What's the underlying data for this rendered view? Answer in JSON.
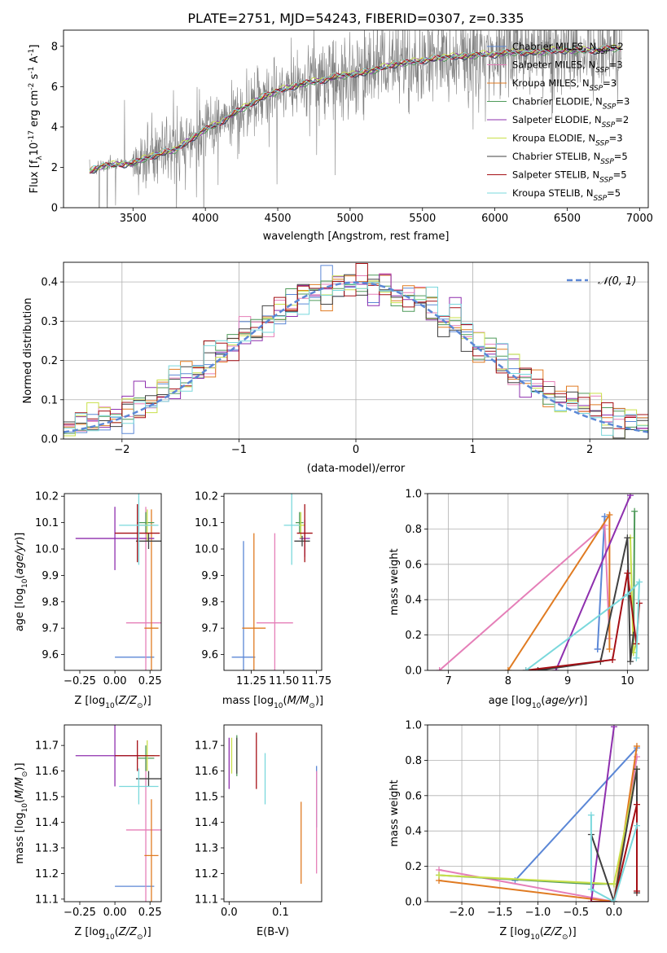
{
  "colors": {
    "chabrier_miles": "#5b87d6",
    "salpeter_miles": "#e57fb8",
    "kroupa_miles": "#e07b22",
    "chabrier_elodie": "#4f9a5a",
    "salpeter_elodie": "#8e2fae",
    "kroupa_elodie": "#c9e04a",
    "chabrier_stelib": "#404040",
    "salpeter_stelib": "#a50f15",
    "kroupa_stelib": "#7ad8dc",
    "data": "#808080",
    "normal": "#5b87d6"
  },
  "chart_data": [
    {
      "id": "spectrum",
      "type": "line",
      "title": "PLATE=2751, MJD=54243, FIBERID=0307, z=0.335",
      "xlabel": "wavelength [Angstrom, rest frame]",
      "ylabel": "Flux [f",
      "ylabel_sub": "λ",
      "ylabel_rest": "10",
      "ylabel_exp": "-17",
      "ylabel_unit": " erg cm",
      "ylabel_exp2": "-2",
      "ylabel_unit2": " s",
      "ylabel_exp3": "-1",
      "ylabel_unit3": " A",
      "ylabel_exp4": "-1",
      "ylabel_end": "]",
      "xlim": [
        3020,
        7060
      ],
      "ylim": [
        0,
        8.8
      ],
      "xticks": [
        "3500",
        "4000",
        "4500",
        "5000",
        "5500",
        "6000",
        "6500",
        "7000"
      ],
      "xtick_values": [
        3500,
        4000,
        4500,
        5000,
        5500,
        6000,
        6500,
        7000
      ],
      "yticks": [
        "0",
        "2",
        "4",
        "6",
        "8"
      ],
      "ytick_values": [
        0,
        2,
        4,
        6,
        8
      ],
      "grid": false,
      "legend_position": "top-right",
      "continuum": {
        "x": [
          3200,
          3300,
          3400,
          3500,
          3600,
          3700,
          3800,
          3900,
          4000,
          4100,
          4200,
          4300,
          4400,
          4500,
          4600,
          4700,
          4800,
          4900,
          5000,
          5100,
          5200,
          5300,
          5400,
          5500,
          5600,
          5700,
          5800,
          5900,
          6000,
          6100,
          6200,
          6300,
          6400,
          6500,
          6600,
          6700,
          6800,
          6880
        ],
        "y": [
          1.8,
          2.1,
          2.15,
          2.2,
          2.5,
          2.7,
          2.9,
          3.4,
          3.9,
          4.2,
          4.7,
          5.1,
          5.5,
          5.8,
          6.0,
          6.2,
          6.3,
          6.5,
          6.6,
          6.7,
          6.9,
          7.1,
          7.2,
          7.3,
          7.4,
          7.5,
          7.5,
          7.6,
          7.6,
          7.7,
          7.7,
          7.7,
          7.8,
          7.8,
          7.8,
          7.8,
          7.9,
          7.9
        ]
      },
      "series": [
        {
          "name": "Chabrier MILES, N",
          "nssp": "=2"
        },
        {
          "name": "Salpeter MILES, N",
          "nssp": "=3"
        },
        {
          "name": "Kroupa MILES, N",
          "nssp": "=3"
        },
        {
          "name": "Chabrier ELODIE, N",
          "nssp": "=3"
        },
        {
          "name": "Salpeter ELODIE, N",
          "nssp": "=2"
        },
        {
          "name": "Kroupa ELODIE, N",
          "nssp": "=3"
        },
        {
          "name": "Chabrier STELIB, N",
          "nssp": "=5"
        },
        {
          "name": "Salpeter STELIB, N",
          "nssp": "=5"
        },
        {
          "name": "Kroupa STELIB, N",
          "nssp": "=5"
        }
      ],
      "legend_sub": "SSP"
    },
    {
      "id": "residuals",
      "type": "line",
      "xlabel": "(data-model)/error",
      "ylabel": "Normed distribution",
      "xlim": [
        -2.5,
        2.5
      ],
      "ylim": [
        0,
        0.45
      ],
      "xticks": [
        "−2",
        "−1",
        "0",
        "1",
        "2"
      ],
      "xtick_values": [
        -2,
        -1,
        0,
        1,
        2
      ],
      "yticks": [
        "0.0",
        "0.1",
        "0.2",
        "0.3",
        "0.4"
      ],
      "ytick_values": [
        0,
        0.1,
        0.2,
        0.3,
        0.4
      ],
      "grid": true,
      "legend_position": "top-right",
      "legend_label": "𝒩(0, 1)"
    },
    {
      "id": "z-age",
      "type": "scatter",
      "xlabel": "Z [log",
      "ylabel": "age  [log",
      "xlim": [
        -0.36,
        0.33
      ],
      "ylim": [
        9.54,
        10.21
      ],
      "xticks": [
        "−0.25",
        "0.00",
        "0.25"
      ],
      "xtick_values": [
        -0.25,
        0,
        0.25
      ],
      "yticks": [
        "9.6",
        "9.7",
        "9.8",
        "9.9",
        "10.0",
        "10.1",
        "10.2"
      ],
      "ytick_values": [
        9.6,
        9.7,
        9.8,
        9.9,
        10.0,
        10.1,
        10.2
      ],
      "grid": false,
      "points": [
        {
          "series": "chabrier_miles",
          "x": 0.14,
          "y": 9.59,
          "xerr": 0.14,
          "yerr": 0
        },
        {
          "series": "salpeter_miles",
          "x": 0.22,
          "y": 9.72,
          "xerr": 0.14,
          "yerr": 0.44
        },
        {
          "series": "kroupa_miles",
          "x": 0.26,
          "y": 9.7,
          "xerr": 0.05,
          "yerr": 0.45
        },
        {
          "series": "chabrier_elodie",
          "x": 0.22,
          "y": 10.1,
          "xerr": 0.06,
          "yerr": 0.04
        },
        {
          "series": "salpeter_elodie",
          "x": 0.0,
          "y": 10.04,
          "xerr": 0.28,
          "yerr": 0.12
        },
        {
          "series": "kroupa_elodie",
          "x": 0.23,
          "y": 10.09,
          "xerr": 0.05,
          "yerr": 0.06
        },
        {
          "series": "chabrier_stelib",
          "x": 0.24,
          "y": 10.03,
          "xerr": 0.09,
          "yerr": 0.03
        },
        {
          "series": "salpeter_stelib",
          "x": 0.16,
          "y": 10.06,
          "xerr": 0.16,
          "yerr": 0.11
        },
        {
          "series": "kroupa_stelib",
          "x": 0.17,
          "y": 10.09,
          "xerr": 0.14,
          "yerr": 0.15
        }
      ]
    },
    {
      "id": "mass-age",
      "type": "scatter",
      "xlabel": "mass [log",
      "xlim": [
        11.04,
        11.79
      ],
      "ylim": [
        9.54,
        10.21
      ],
      "xticks": [
        "11.25",
        "11.50",
        "11.75"
      ],
      "xtick_values": [
        11.25,
        11.5,
        11.75
      ],
      "yticks": [
        "9.6",
        "9.7",
        "9.8",
        "9.9",
        "10.0",
        "10.1",
        "10.2"
      ],
      "ytick_values": [
        9.6,
        9.7,
        9.8,
        9.9,
        10.0,
        10.1,
        10.2
      ],
      "grid": false,
      "points": [
        {
          "series": "chabrier_miles",
          "x": 11.19,
          "y": 9.59,
          "xerr": 0.09,
          "yerr": 0.44
        },
        {
          "series": "salpeter_miles",
          "x": 11.43,
          "y": 9.72,
          "xerr": 0.14,
          "yerr": 0.34
        },
        {
          "series": "kroupa_miles",
          "x": 11.27,
          "y": 9.7,
          "xerr": 0.09,
          "yerr": 0.36
        },
        {
          "series": "chabrier_elodie",
          "x": 11.62,
          "y": 10.1,
          "xerr": 0.03,
          "yerr": 0.04
        },
        {
          "series": "salpeter_elodie",
          "x": 11.66,
          "y": 10.04,
          "xerr": 0.04,
          "yerr": 0.07
        },
        {
          "series": "kroupa_elodie",
          "x": 11.63,
          "y": 10.09,
          "xerr": 0.03,
          "yerr": 0.05
        },
        {
          "series": "chabrier_stelib",
          "x": 11.64,
          "y": 10.03,
          "xerr": 0.06,
          "yerr": 0.02
        },
        {
          "series": "salpeter_stelib",
          "x": 11.66,
          "y": 10.06,
          "xerr": 0.06,
          "yerr": 0.11
        },
        {
          "series": "kroupa_stelib",
          "x": 11.56,
          "y": 10.09,
          "xerr": 0.06,
          "yerr": 0.15
        }
      ]
    },
    {
      "id": "age-weight",
      "type": "line",
      "xlabel": "age  [log",
      "ylabel": "mass weight",
      "xlim": [
        6.65,
        10.35
      ],
      "ylim": [
        0,
        1.0
      ],
      "xticks": [
        "7",
        "8",
        "9",
        "10"
      ],
      "xtick_values": [
        7,
        8,
        9,
        10
      ],
      "yticks": [
        "0.0",
        "0.2",
        "0.4",
        "0.6",
        "0.8",
        "1.0"
      ],
      "ytick_values": [
        0,
        0.2,
        0.4,
        0.6,
        0.8,
        1.0
      ],
      "grid": true,
      "lines": [
        {
          "series": "chabrier_miles",
          "x": [
            9.5,
            9.62,
            9.62,
            9.5
          ],
          "y": [
            0.12,
            0.87,
            0.87,
            0.12
          ]
        },
        {
          "series": "salpeter_miles",
          "x": [
            6.85,
            9.62,
            9.7
          ],
          "y": [
            0.0,
            0.82,
            0.18
          ]
        },
        {
          "series": "kroupa_miles",
          "x": [
            8.0,
            9.7,
            9.7
          ],
          "y": [
            0.0,
            0.88,
            0.12
          ]
        },
        {
          "series": "chabrier_elodie",
          "x": [
            10.1,
            10.12
          ],
          "y": [
            0.1,
            0.9
          ]
        },
        {
          "series": "salpeter_elodie",
          "x": [
            8.8,
            10.05
          ],
          "y": [
            0.0,
            0.99
          ]
        },
        {
          "series": "kroupa_elodie",
          "x": [
            10.05,
            10.1,
            10.15
          ],
          "y": [
            0.75,
            0.1,
            0.15
          ]
        },
        {
          "series": "chabrier_stelib",
          "x": [
            8.5,
            9.55,
            10.0,
            10.05,
            10.1
          ],
          "y": [
            0.0,
            0.05,
            0.75,
            0.05,
            0.2
          ]
        },
        {
          "series": "salpeter_stelib",
          "x": [
            8.3,
            9.75,
            10.0,
            10.15,
            10.2
          ],
          "y": [
            0.0,
            0.06,
            0.55,
            0.15,
            0.38
          ]
        },
        {
          "series": "kroupa_stelib",
          "x": [
            8.3,
            10.0,
            10.2,
            10.15
          ],
          "y": [
            0.0,
            0.43,
            0.5,
            0.07
          ]
        }
      ]
    },
    {
      "id": "z-mass",
      "type": "scatter",
      "xlabel": "Z [log",
      "ylabel": "mass [log",
      "xlim": [
        -0.36,
        0.33
      ],
      "ylim": [
        11.09,
        11.78
      ],
      "xticks": [
        "−0.25",
        "0.00",
        "0.25"
      ],
      "xtick_values": [
        -0.25,
        0,
        0.25
      ],
      "yticks": [
        "11.1",
        "11.2",
        "11.3",
        "11.4",
        "11.5",
        "11.6",
        "11.7"
      ],
      "ytick_values": [
        11.1,
        11.2,
        11.3,
        11.4,
        11.5,
        11.6,
        11.7
      ],
      "grid": false,
      "points": [
        {
          "series": "chabrier_miles",
          "x": 0.14,
          "y": 11.15,
          "xerr": 0.14,
          "yerr": 0
        },
        {
          "series": "salpeter_miles",
          "x": 0.22,
          "y": 11.37,
          "xerr": 0.14,
          "yerr": 0.28
        },
        {
          "series": "kroupa_miles",
          "x": 0.26,
          "y": 11.27,
          "xerr": 0.05,
          "yerr": 0.22
        },
        {
          "series": "chabrier_elodie",
          "x": 0.22,
          "y": 11.65,
          "xerr": 0.06,
          "yerr": 0.05
        },
        {
          "series": "salpeter_elodie",
          "x": 0.0,
          "y": 11.66,
          "xerr": 0.28,
          "yerr": 0.12
        },
        {
          "series": "kroupa_elodie",
          "x": 0.23,
          "y": 11.66,
          "xerr": 0.05,
          "yerr": 0.06
        },
        {
          "series": "chabrier_stelib",
          "x": 0.24,
          "y": 11.57,
          "xerr": 0.09,
          "yerr": 0.03
        },
        {
          "series": "salpeter_stelib",
          "x": 0.16,
          "y": 11.66,
          "xerr": 0.16,
          "yerr": 0.06
        },
        {
          "series": "kroupa_stelib",
          "x": 0.17,
          "y": 11.54,
          "xerr": 0.14,
          "yerr": 0.07
        }
      ]
    },
    {
      "id": "ebv-mass",
      "type": "scatter",
      "xlabel": "E(B-V)",
      "xlim": [
        -0.01,
        0.18
      ],
      "ylim": [
        11.09,
        11.78
      ],
      "xticks": [
        "0.0",
        "0.1"
      ],
      "xtick_values": [
        0,
        0.1
      ],
      "yticks": [
        "11.1",
        "11.2",
        "11.3",
        "11.4",
        "11.5",
        "11.6",
        "11.7"
      ],
      "ytick_values": [
        11.1,
        11.2,
        11.3,
        11.4,
        11.5,
        11.6,
        11.7
      ],
      "grid": false,
      "points": [
        {
          "series": "chabrier_miles",
          "x": 0.17,
          "y": 11.5,
          "xerr": 0,
          "yerr": 0.12
        },
        {
          "series": "salpeter_miles",
          "x": 0.17,
          "y": 11.4,
          "xerr": 0,
          "yerr": 0.2
        },
        {
          "series": "kroupa_miles",
          "x": 0.14,
          "y": 11.32,
          "xerr": 0,
          "yerr": 0.16
        },
        {
          "series": "chabrier_elodie",
          "x": 0.015,
          "y": 11.66,
          "xerr": 0,
          "yerr": 0.08
        },
        {
          "series": "salpeter_elodie",
          "x": 0.0,
          "y": 11.63,
          "xerr": 0,
          "yerr": 0.1
        },
        {
          "series": "kroupa_elodie",
          "x": 0.005,
          "y": 11.66,
          "xerr": 0,
          "yerr": 0.07
        },
        {
          "series": "chabrier_stelib",
          "x": 0.015,
          "y": 11.66,
          "xerr": 0,
          "yerr": 0.07
        },
        {
          "series": "salpeter_stelib",
          "x": 0.053,
          "y": 11.64,
          "xerr": 0,
          "yerr": 0.11
        },
        {
          "series": "kroupa_stelib",
          "x": 0.07,
          "y": 11.57,
          "xerr": 0,
          "yerr": 0.1
        }
      ]
    },
    {
      "id": "zw-weight",
      "type": "line",
      "xlabel": "Z [log",
      "ylabel": "mass weight",
      "xlim": [
        -2.45,
        0.45
      ],
      "ylim": [
        0,
        1.0
      ],
      "xticks": [
        "−2.0",
        "−1.5",
        "−1.0",
        "−0.5",
        "0.0"
      ],
      "xtick_values": [
        -2.0,
        -1.5,
        -1.0,
        -0.5,
        0.0
      ],
      "yticks": [
        "0.0",
        "0.2",
        "0.4",
        "0.6",
        "0.8",
        "1.0"
      ],
      "ytick_values": [
        0,
        0.2,
        0.4,
        0.6,
        0.8,
        1.0
      ],
      "grid": true,
      "lines": [
        {
          "series": "chabrier_miles",
          "x": [
            -1.3,
            0.3
          ],
          "y": [
            0.12,
            0.87
          ]
        },
        {
          "series": "salpeter_miles",
          "x": [
            -2.3,
            0.0,
            0.3
          ],
          "y": [
            0.18,
            0.0,
            0.82
          ]
        },
        {
          "series": "kroupa_miles",
          "x": [
            -2.3,
            0.0,
            0.3
          ],
          "y": [
            0.12,
            0.0,
            0.88
          ]
        },
        {
          "series": "chabrier_elodie",
          "x": [
            -2.3,
            -0.3,
            0.0
          ],
          "y": [
            0.15,
            0.1,
            0.1
          ]
        },
        {
          "series": "salpeter_elodie",
          "x": [
            -0.3,
            0.0
          ],
          "y": [
            0.0,
            0.99
          ]
        },
        {
          "series": "kroupa_elodie",
          "x": [
            -2.3,
            0.0,
            0.3
          ],
          "y": [
            0.15,
            0.1,
            0.75
          ]
        },
        {
          "series": "chabrier_stelib",
          "x": [
            -0.3,
            0.0,
            0.3,
            0.3
          ],
          "y": [
            0.38,
            0.0,
            0.75,
            0.05
          ]
        },
        {
          "series": "salpeter_stelib",
          "x": [
            -0.3,
            0.0,
            0.3,
            0.3
          ],
          "y": [
            0.0,
            0.0,
            0.55,
            0.06
          ]
        },
        {
          "series": "kroupa_stelib",
          "x": [
            -0.3,
            -0.3,
            0.0,
            0.3
          ],
          "y": [
            0.49,
            0.07,
            0.0,
            0.43
          ]
        }
      ]
    }
  ]
}
